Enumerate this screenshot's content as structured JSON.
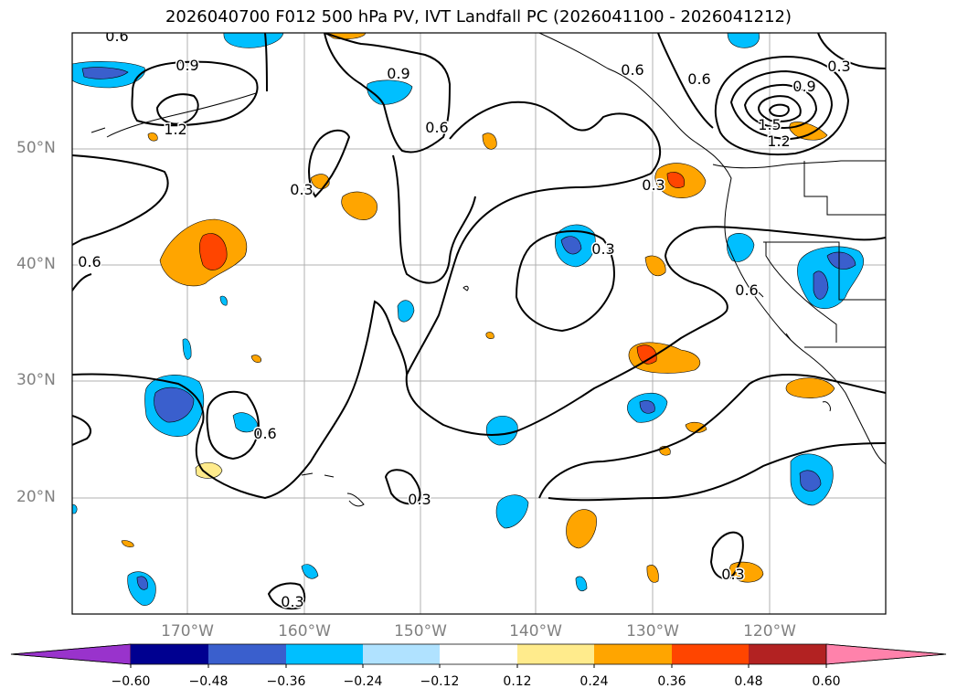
{
  "title": "2026040700 F012 500 hPa PV, IVT Landfall PC (2026041100 - 2026041212)",
  "map": {
    "lat_labels": [
      "50°N",
      "40°N",
      "30°N",
      "20°N"
    ],
    "lon_labels": [
      "170°W",
      "160°W",
      "150°W",
      "140°W",
      "130°W",
      "120°W"
    ],
    "contour_labels": [
      "0.6",
      "0.9",
      "1.2",
      "0.9",
      "0.6",
      "0.6",
      "0.9",
      "0.3",
      "1.5",
      "1.2",
      "0.3",
      "0.3",
      "0.6",
      "0.6",
      "0.3",
      "0.6",
      "0.3",
      "0.3",
      "0.3"
    ]
  },
  "colorbar": {
    "colors": [
      "#9933cc",
      "#000090",
      "#3a5fcd",
      "#00bfff",
      "#b0e2ff",
      "#ffffff",
      "#ffeb8c",
      "#ffa500",
      "#ff4500",
      "#b22222",
      "#ff82ab"
    ],
    "tick_labels": [
      "−0.60",
      "−0.48",
      "−0.36",
      "−0.24",
      "−0.12",
      "0.12",
      "0.24",
      "0.36",
      "0.48",
      "0.60"
    ]
  }
}
